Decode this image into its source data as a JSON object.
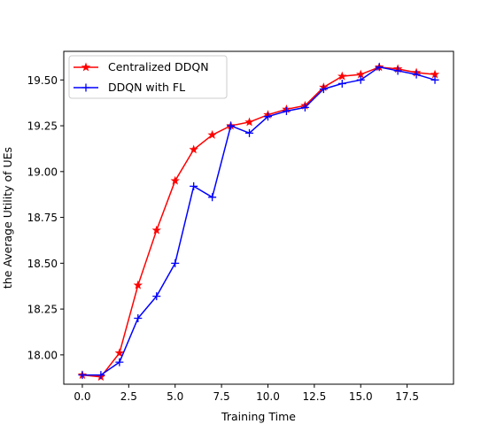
{
  "chart_data": {
    "type": "line",
    "title": "",
    "xlabel": "Training Time",
    "ylabel": "the Average Utility of UEs",
    "xlim": [
      -1,
      20
    ],
    "ylim": [
      17.84,
      19.656
    ],
    "xticks": [
      0,
      2.5,
      5,
      7.5,
      10,
      12.5,
      15,
      17.5
    ],
    "xtick_labels": [
      "0.0",
      "2.5",
      "5.0",
      "7.5",
      "10.0",
      "12.5",
      "15.0",
      "17.5"
    ],
    "yticks": [
      18.0,
      18.25,
      18.5,
      18.75,
      19.0,
      19.25,
      19.5
    ],
    "ytick_labels": [
      "18.00",
      "18.25",
      "18.50",
      "18.75",
      "19.00",
      "19.25",
      "19.50"
    ],
    "grid": false,
    "legend_position": "top-left",
    "x": [
      0,
      1,
      2,
      3,
      4,
      5,
      6,
      7,
      8,
      9,
      10,
      11,
      12,
      13,
      14,
      15,
      16,
      17,
      18,
      19
    ],
    "series": [
      {
        "name": "Centralized DDQN",
        "color": "#ff0000",
        "marker": "star",
        "values": [
          17.89,
          17.88,
          18.01,
          18.38,
          18.68,
          18.95,
          19.12,
          19.2,
          19.25,
          19.27,
          19.31,
          19.34,
          19.36,
          19.46,
          19.52,
          19.53,
          19.57,
          19.56,
          19.54,
          19.53
        ]
      },
      {
        "name": "DDQN with FL",
        "color": "#0000ff",
        "marker": "plus",
        "values": [
          17.89,
          17.89,
          17.96,
          18.2,
          18.32,
          18.5,
          18.92,
          18.86,
          19.25,
          19.21,
          19.3,
          19.33,
          19.35,
          19.45,
          19.48,
          19.5,
          19.57,
          19.55,
          19.53,
          19.5
        ]
      }
    ]
  }
}
